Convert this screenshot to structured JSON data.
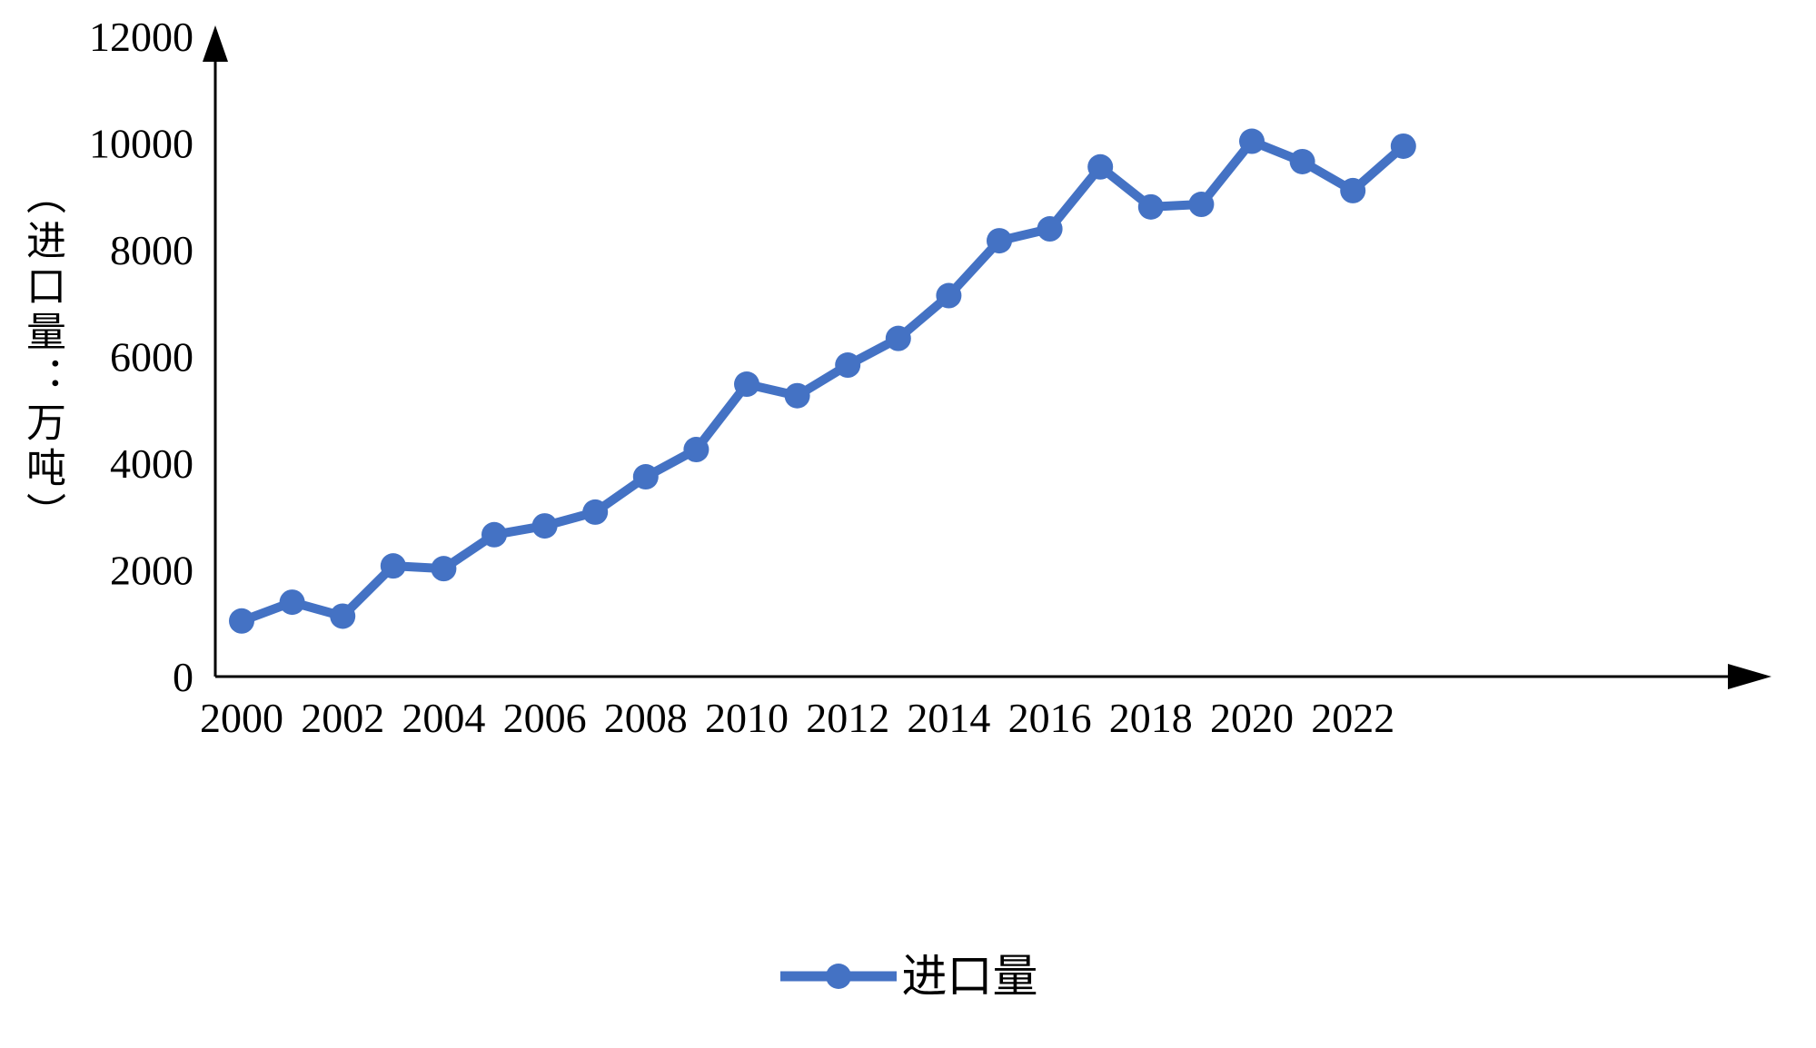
{
  "chart_data": {
    "type": "line",
    "title": "",
    "xlabel": "",
    "ylabel": "（进口量：万吨）",
    "ylim": [
      0,
      12000
    ],
    "ytick_step": 2000,
    "ytick_labels": [
      "0",
      "2000",
      "4000",
      "6000",
      "8000",
      "10000",
      "12000"
    ],
    "x": [
      2000,
      2001,
      2002,
      2003,
      2004,
      2005,
      2006,
      2007,
      2008,
      2009,
      2010,
      2011,
      2012,
      2013,
      2014,
      2015,
      2016,
      2017,
      2018,
      2019,
      2020,
      2021,
      2022,
      2023
    ],
    "xtick_labels": [
      "2000",
      "2002",
      "2004",
      "2006",
      "2008",
      "2010",
      "2012",
      "2014",
      "2016",
      "2018",
      "2020",
      "2022"
    ],
    "grid": false,
    "legend_position": "bottom-center",
    "series": [
      {
        "name": "进口量",
        "color": "#4472C4",
        "marker": "circle",
        "values": [
          1042,
          1394,
          1132,
          2074,
          2023,
          2659,
          2824,
          3082,
          3744,
          4255,
          5480,
          5264,
          5838,
          6338,
          7140,
          8169,
          8391,
          9553,
          8803,
          8851,
          10033,
          9652,
          9108,
          9941
        ]
      }
    ]
  },
  "colors": {
    "line": "#4472C4",
    "axis": "#000000",
    "text": "#000000",
    "background": "#FFFFFF"
  }
}
